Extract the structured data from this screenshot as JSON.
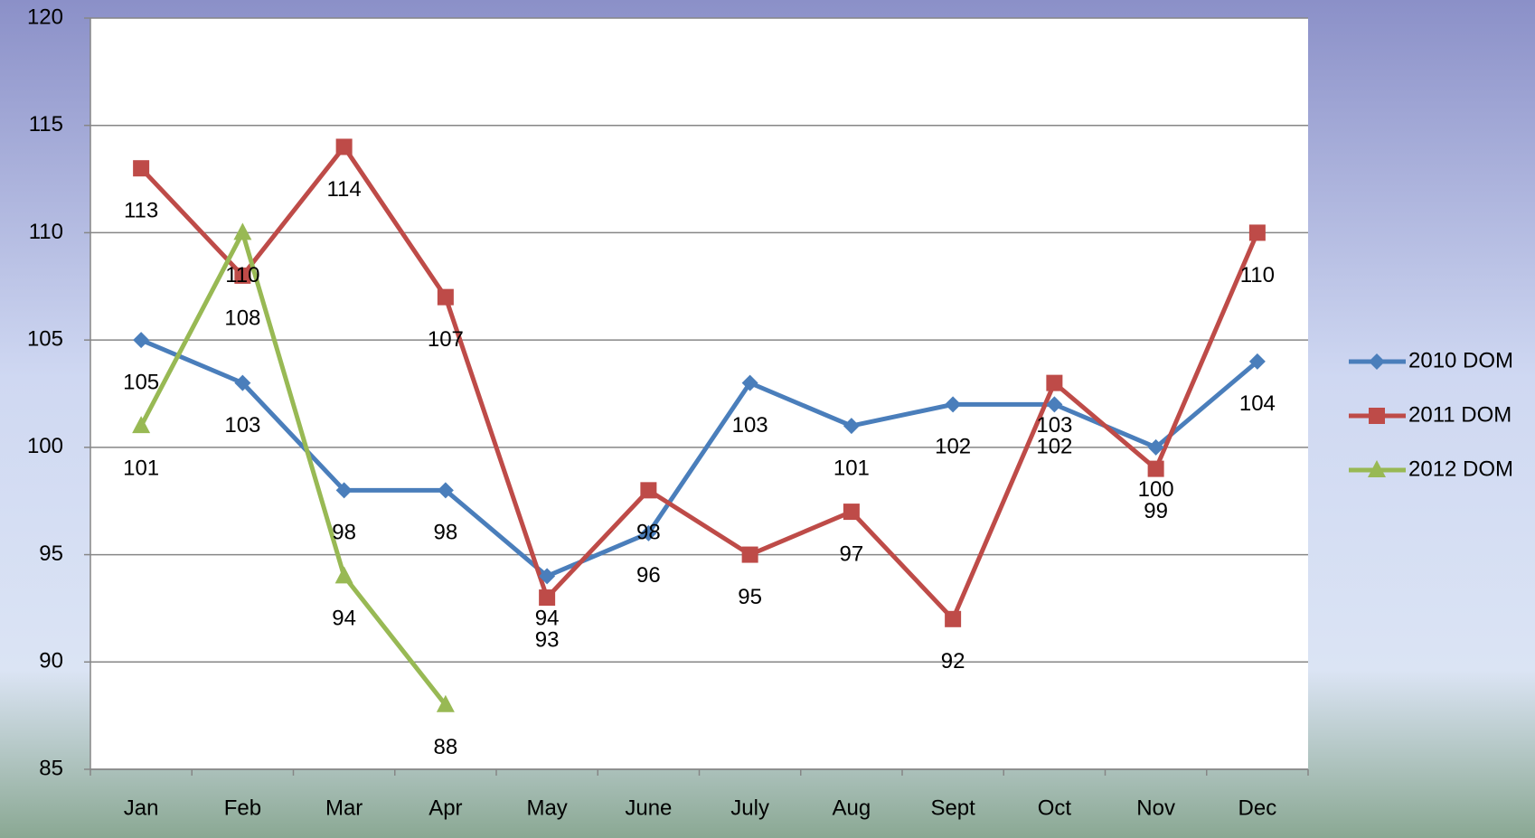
{
  "chart_data": {
    "type": "line",
    "categories": [
      "Jan",
      "Feb",
      "Mar",
      "Apr",
      "May",
      "June",
      "July",
      "Aug",
      "Sept",
      "Oct",
      "Nov",
      "Dec"
    ],
    "series": [
      {
        "name": "2010 DOM",
        "color": "#4a7ebb",
        "marker": "diamond",
        "values": [
          105,
          103,
          98,
          98,
          94,
          96,
          103,
          101,
          102,
          102,
          100,
          104
        ]
      },
      {
        "name": "2011 DOM",
        "color": "#be4b48",
        "marker": "square",
        "values": [
          113,
          108,
          114,
          107,
          93,
          98,
          95,
          97,
          92,
          103,
          99,
          110
        ]
      },
      {
        "name": "2012 DOM",
        "color": "#98b954",
        "marker": "triangle",
        "values": [
          101,
          110,
          94,
          88,
          null,
          null,
          null,
          null,
          null,
          null,
          null,
          null
        ]
      }
    ],
    "ylim": [
      85,
      120
    ],
    "yticks": [
      85,
      90,
      95,
      100,
      105,
      110,
      115,
      120
    ],
    "grid": true,
    "legend": "right",
    "data_labels": true
  }
}
